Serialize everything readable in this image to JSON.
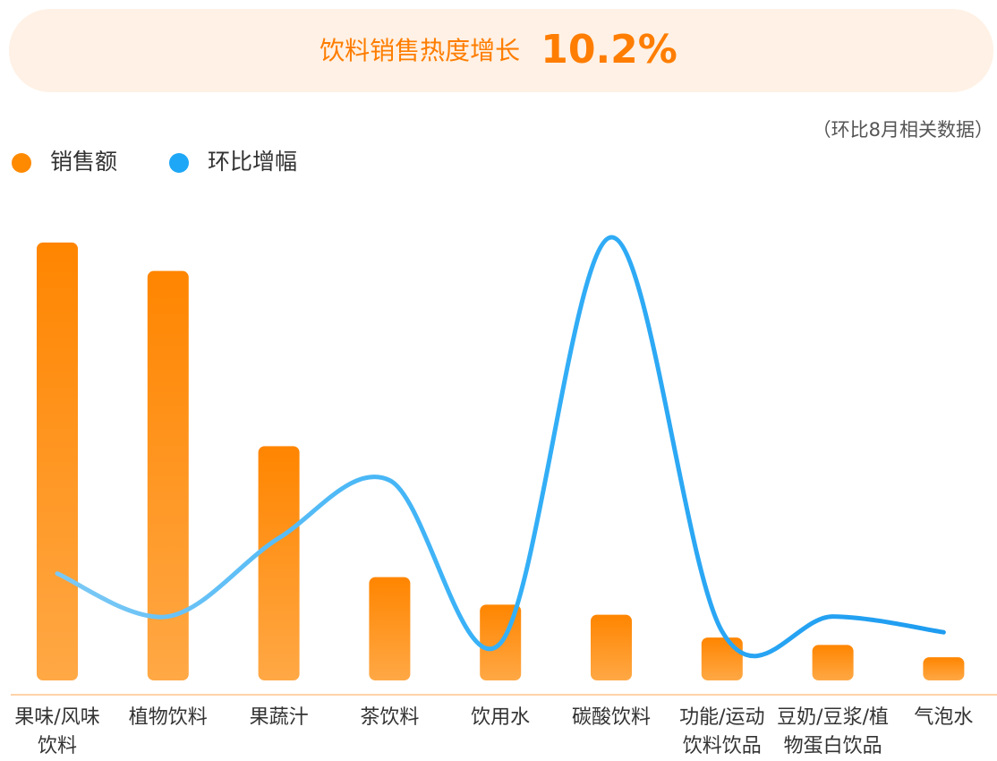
{
  "chart_data": {
    "type": "bar",
    "title": "饮料销售热度增长",
    "highlight": "10.2%",
    "note": "（环比8月相关数据）",
    "categories": [
      "果味/风味\n饮料",
      "植物饮料",
      "果蔬汁",
      "茶饮料",
      "饮用水",
      "碳酸饮料",
      "功能/运动\n饮料饮品",
      "豆奶/豆浆/植\n物蛋白饮品",
      "气泡水"
    ],
    "series": [
      {
        "name": "销售额",
        "type": "bar",
        "color": "#ff8a00",
        "values": [
          100,
          93.5,
          53.5,
          23.6,
          17.3,
          15,
          9.8,
          8.1,
          5.3
        ]
      },
      {
        "name": "环比增幅",
        "type": "line",
        "color": "#1ea7f7",
        "values": [
          24.4,
          14.6,
          32.5,
          45.7,
          8.5,
          101.2,
          11.2,
          14.6,
          11
        ]
      }
    ]
  }
}
